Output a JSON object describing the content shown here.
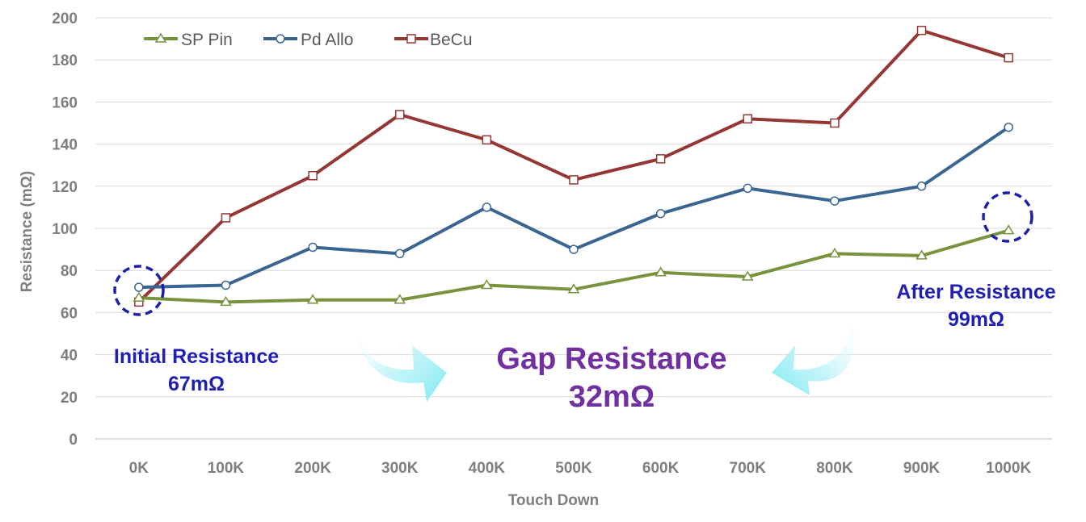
{
  "chart_data": {
    "type": "line",
    "xlabel": "Touch Down",
    "ylabel": "Resistance (mΩ)",
    "ylim": [
      0,
      200
    ],
    "yticks": [
      0,
      20,
      40,
      60,
      80,
      100,
      120,
      140,
      160,
      180,
      200
    ],
    "grid": true,
    "legend_position": "top-left",
    "categories": [
      "0K",
      "100K",
      "200K",
      "300K",
      "400K",
      "500K",
      "600K",
      "700K",
      "800K",
      "900K",
      "1000K"
    ],
    "series": [
      {
        "name": "SP Pin",
        "color": "#77933c",
        "marker": "triangle",
        "values": [
          67,
          65,
          66,
          66,
          73,
          71,
          79,
          77,
          88,
          87,
          99
        ]
      },
      {
        "name": "Pd Allo",
        "color": "#3a6591",
        "marker": "circle",
        "values": [
          72,
          73,
          91,
          88,
          110,
          90,
          107,
          119,
          113,
          120,
          148
        ]
      },
      {
        "name": "BeCu",
        "color": "#953735",
        "marker": "square",
        "values": [
          65,
          105,
          125,
          154,
          142,
          123,
          133,
          152,
          150,
          194,
          181
        ]
      }
    ],
    "annotations": {
      "initial_line1": "Initial Resistance",
      "initial_line2": "67mΩ",
      "after_line1": "After Resistance",
      "after_line2": "99mΩ",
      "gap_line1": "Gap Resistance",
      "gap_line2": "32mΩ",
      "circle_color": "#1f1fa8",
      "annotation_color": "#1f1fb4",
      "gap_color": "#7030a0",
      "arrow_color": "#9ff0f6"
    }
  }
}
